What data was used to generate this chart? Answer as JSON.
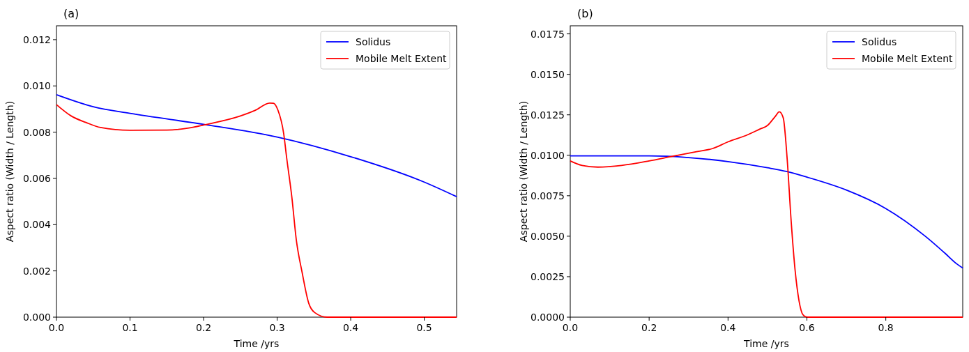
{
  "chart_data": [
    {
      "type": "line",
      "title": "(a)",
      "xlabel": "Time /yrs",
      "ylabel": "Aspect ratio (Width / Length)",
      "xlim": [
        0,
        0.544
      ],
      "xticks": [
        {
          "value": 0,
          "label": "0.0"
        },
        0.1,
        0.2,
        0.3,
        0.4,
        0.5
      ],
      "ylim": [
        0,
        0.0126
      ],
      "yticks": [
        {
          "value": 0,
          "label": "0.000"
        },
        {
          "value": 0.002,
          "label": "0.002"
        },
        {
          "value": 0.004,
          "label": "0.004"
        },
        {
          "value": 0.006,
          "label": "0.006"
        },
        {
          "value": 0.008,
          "label": "0.008"
        },
        {
          "value": 0.01,
          "label": "0.010"
        },
        {
          "value": 0.012,
          "label": "0.012"
        }
      ],
      "legend": "top right",
      "grid": false,
      "series": [
        {
          "name": "Solidus",
          "color": "#0000ff",
          "x": [
            0,
            0.05,
            0.1,
            0.2,
            0.3,
            0.4,
            0.5,
            0.544
          ],
          "values": [
            0.00962,
            0.0091,
            0.00881,
            0.00834,
            0.00779,
            0.00694,
            0.00584,
            0.00521
          ]
        },
        {
          "name": "Mobile Melt Extent",
          "color": "#ff0000",
          "x": [
            0,
            0.02,
            0.04,
            0.06,
            0.1,
            0.15,
            0.18,
            0.2,
            0.25,
            0.27,
            0.29,
            0.295,
            0.301,
            0.309,
            0.313,
            0.32,
            0.326,
            0.334,
            0.343,
            0.351,
            0.368,
            0.544
          ],
          "values": [
            0.00919,
            0.0087,
            0.00842,
            0.0082,
            0.00808,
            0.00809,
            0.00818,
            0.00831,
            0.0087,
            0.00894,
            0.00926,
            0.00925,
            0.00896,
            0.00792,
            0.00688,
            0.00519,
            0.00336,
            0.00193,
            0.0006,
            0.0002,
            0,
            0
          ]
        }
      ]
    },
    {
      "type": "line",
      "title": "(b)",
      "xlabel": "Time /yrs",
      "ylabel": "Aspect ratio (Width / Length)",
      "xlim": [
        0,
        0.995
      ],
      "xticks": [
        {
          "value": 0,
          "label": "0.0"
        },
        0.2,
        0.4,
        0.6,
        0.8
      ],
      "ylim": [
        0,
        0.018
      ],
      "yticks": [
        {
          "value": 0,
          "label": "0.0000"
        },
        {
          "value": 0.0025,
          "label": "0.0025"
        },
        {
          "value": 0.005,
          "label": "0.0050"
        },
        {
          "value": 0.0075,
          "label": "0.0075"
        },
        {
          "value": 0.01,
          "label": "0.0100"
        },
        {
          "value": 0.0125,
          "label": "0.0125"
        },
        {
          "value": 0.015,
          "label": "0.0150"
        },
        {
          "value": 0.0175,
          "label": "0.0175"
        }
      ],
      "legend": "top right",
      "grid": false,
      "series": [
        {
          "name": "Solidus",
          "color": "#0000ff",
          "x": [
            0,
            0.2,
            0.3,
            0.4,
            0.5,
            0.55,
            0.6,
            0.7,
            0.8,
            0.9,
            0.95,
            0.98,
            0.995
          ],
          "values": [
            0.00996,
            0.00996,
            0.00986,
            0.00961,
            0.00923,
            0.00899,
            0.00865,
            0.00785,
            0.00671,
            0.005,
            0.00395,
            0.00329,
            0.00304
          ]
        },
        {
          "name": "Mobile Melt Extent",
          "color": "#ff0000",
          "x": [
            0,
            0.03,
            0.07,
            0.13,
            0.2,
            0.26,
            0.32,
            0.36,
            0.4,
            0.45,
            0.48,
            0.5,
            0.52,
            0.53,
            0.54,
            0.55,
            0.56,
            0.57,
            0.58,
            0.59,
            0.6,
            0.995
          ],
          "values": [
            0.00965,
            0.00937,
            0.00927,
            0.00937,
            0.00965,
            0.00994,
            0.01022,
            0.01041,
            0.01083,
            0.01127,
            0.01161,
            0.01184,
            0.01241,
            0.01269,
            0.01231,
            0.00975,
            0.00595,
            0.00291,
            0.00101,
            0.00015,
            0,
            0
          ]
        }
      ]
    }
  ]
}
